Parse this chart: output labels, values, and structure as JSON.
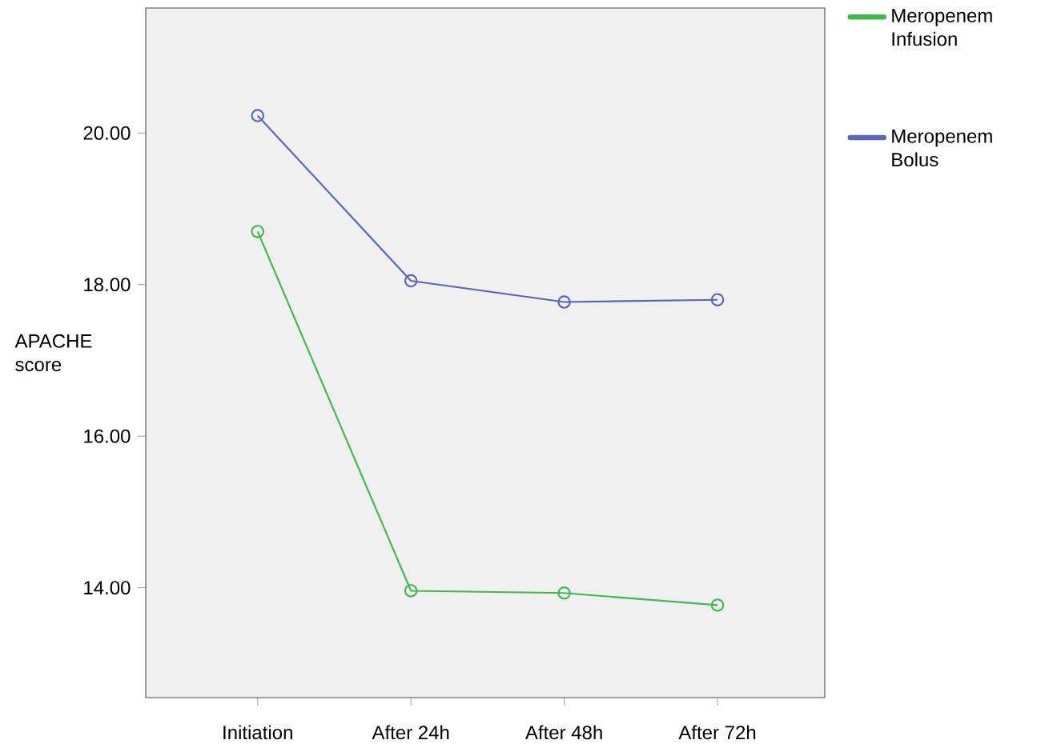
{
  "chart_data": {
    "type": "line",
    "ylabel": "APACHE score",
    "categories": [
      "Initiation",
      "After 24h",
      "After 48h",
      "After 72h"
    ],
    "series": [
      {
        "name": "Meropenem Infusion",
        "color": "#3cbb4a",
        "values": [
          18.7,
          13.96,
          13.93,
          13.77
        ]
      },
      {
        "name": "Meropenem Bolus",
        "color": "#5865b8",
        "values": [
          20.23,
          18.05,
          17.77,
          17.8
        ]
      }
    ],
    "ylim": [
      12.55,
      21.65
    ],
    "yticks": [
      {
        "value": 14,
        "label": "14.00"
      },
      {
        "value": 16,
        "label": "16.00"
      },
      {
        "value": 18,
        "label": "18.00"
      },
      {
        "value": 20,
        "label": "20.00"
      }
    ],
    "marker": "circle",
    "line_style": "solid",
    "legend": "top right",
    "grid": false
  }
}
